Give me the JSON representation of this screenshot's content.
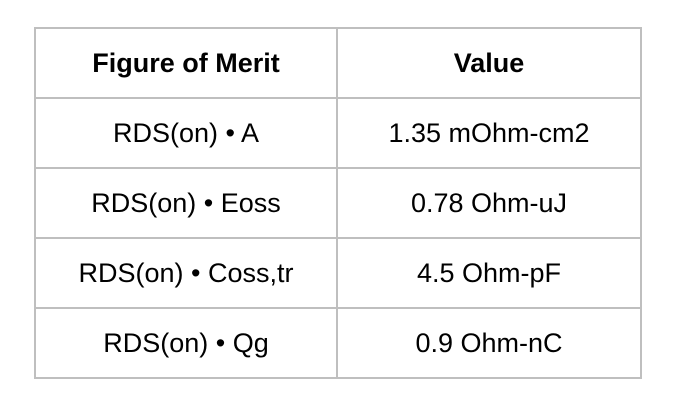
{
  "table": {
    "header": [
      "Figure of Merit",
      "Value"
    ],
    "rows": [
      [
        "RDS(on) • A",
        "1.35 mOhm-cm2"
      ],
      [
        "RDS(on) • Eoss",
        "0.78 Ohm-uJ"
      ],
      [
        "RDS(on) • Coss,tr",
        "4.5 Ohm-pF"
      ],
      [
        "RDS(on) • Qg",
        "0.9 Ohm-nC"
      ]
    ]
  }
}
